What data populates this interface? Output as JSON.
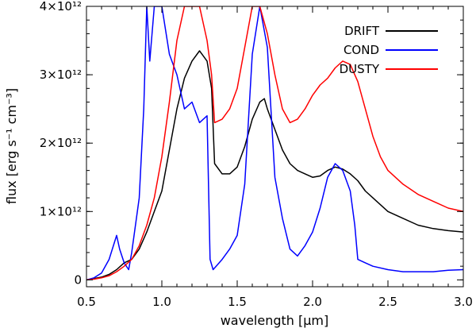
{
  "chart_data": {
    "type": "line",
    "xlabel": "wavelength [μm]",
    "ylabel": "flux [erg s⁻¹ cm⁻³]",
    "xlim": [
      0.5,
      3.0
    ],
    "ylim": [
      -100000000000.0,
      4000000000000.0
    ],
    "x_ticks": [
      0.5,
      1.0,
      1.5,
      2.0,
      2.5,
      3.0
    ],
    "x_tick_labels": [
      "0.5",
      "1.0",
      "1.5",
      "2.0",
      "2.5",
      "3.0"
    ],
    "y_ticks": [
      0,
      1000000000000.0,
      2000000000000.0,
      3000000000000.0,
      4000000000000.0
    ],
    "y_tick_labels": [
      "0",
      "1×10¹²",
      "2×10¹²",
      "3×10¹²",
      "4×10¹²"
    ],
    "grid": false,
    "legend_position": "top-right",
    "series": [
      {
        "name": "DRIFT",
        "color": "#000000",
        "x": [
          0.5,
          0.55,
          0.6,
          0.65,
          0.7,
          0.75,
          0.8,
          0.85,
          0.9,
          0.95,
          1.0,
          1.05,
          1.1,
          1.15,
          1.2,
          1.25,
          1.3,
          1.33,
          1.35,
          1.4,
          1.45,
          1.5,
          1.55,
          1.6,
          1.65,
          1.68,
          1.7,
          1.75,
          1.8,
          1.85,
          1.9,
          1.95,
          2.0,
          2.05,
          2.1,
          2.15,
          2.2,
          2.25,
          2.3,
          2.35,
          2.4,
          2.45,
          2.5,
          2.6,
          2.7,
          2.8,
          2.9,
          3.0
        ],
        "y": [
          0,
          20000000000.0,
          40000000000.0,
          80000000000.0,
          150000000000.0,
          250000000000.0,
          300000000000.0,
          450000000000.0,
          700000000000.0,
          1000000000000.0,
          1300000000000.0,
          1900000000000.0,
          2500000000000.0,
          2950000000000.0,
          3200000000000.0,
          3350000000000.0,
          3200000000000.0,
          2800000000000.0,
          1700000000000.0,
          1550000000000.0,
          1550000000000.0,
          1650000000000.0,
          1950000000000.0,
          2350000000000.0,
          2600000000000.0,
          2650000000000.0,
          2500000000000.0,
          2200000000000.0,
          1900000000000.0,
          1700000000000.0,
          1600000000000.0,
          1550000000000.0,
          1500000000000.0,
          1520000000000.0,
          1600000000000.0,
          1650000000000.0,
          1620000000000.0,
          1550000000000.0,
          1450000000000.0,
          1300000000000.0,
          1200000000000.0,
          1100000000000.0,
          1000000000000.0,
          900000000000.0,
          800000000000.0,
          750000000000.0,
          720000000000.0,
          700000000000.0
        ]
      },
      {
        "name": "COND",
        "color": "#0000ff",
        "x": [
          0.5,
          0.55,
          0.6,
          0.65,
          0.7,
          0.72,
          0.75,
          0.78,
          0.8,
          0.85,
          0.88,
          0.9,
          0.92,
          0.95,
          1.0,
          1.05,
          1.1,
          1.15,
          1.2,
          1.25,
          1.3,
          1.32,
          1.34,
          1.36,
          1.4,
          1.45,
          1.5,
          1.55,
          1.6,
          1.65,
          1.7,
          1.75,
          1.8,
          1.85,
          1.9,
          1.95,
          2.0,
          2.05,
          2.1,
          2.15,
          2.2,
          2.25,
          2.28,
          2.3,
          2.35,
          2.4,
          2.5,
          2.6,
          2.7,
          2.8,
          2.9,
          3.0
        ],
        "y": [
          0,
          30000000000.0,
          100000000000.0,
          300000000000.0,
          650000000000.0,
          450000000000.0,
          250000000000.0,
          150000000000.0,
          400000000000.0,
          1200000000000.0,
          2500000000000.0,
          4000000000000.0,
          3200000000000.0,
          4000000000000.0,
          4000000000000.0,
          3300000000000.0,
          3000000000000.0,
          2500000000000.0,
          2600000000000.0,
          2300000000000.0,
          2400000000000.0,
          300000000000.0,
          150000000000.0,
          200000000000.0,
          300000000000.0,
          450000000000.0,
          650000000000.0,
          1400000000000.0,
          3300000000000.0,
          4000000000000.0,
          3400000000000.0,
          1500000000000.0,
          900000000000.0,
          450000000000.0,
          350000000000.0,
          500000000000.0,
          700000000000.0,
          1050000000000.0,
          1500000000000.0,
          1700000000000.0,
          1600000000000.0,
          1300000000000.0,
          800000000000.0,
          300000000000.0,
          250000000000.0,
          200000000000.0,
          150000000000.0,
          120000000000.0,
          120000000000.0,
          120000000000.0,
          140000000000.0,
          150000000000.0
        ]
      },
      {
        "name": "DUSTY",
        "color": "#ff0000",
        "x": [
          0.5,
          0.55,
          0.6,
          0.65,
          0.7,
          0.75,
          0.8,
          0.85,
          0.9,
          0.95,
          1.0,
          1.05,
          1.1,
          1.15,
          1.2,
          1.25,
          1.3,
          1.33,
          1.35,
          1.4,
          1.45,
          1.5,
          1.55,
          1.6,
          1.65,
          1.7,
          1.75,
          1.8,
          1.85,
          1.9,
          1.95,
          2.0,
          2.05,
          2.1,
          2.15,
          2.2,
          2.25,
          2.3,
          2.35,
          2.4,
          2.45,
          2.5,
          2.6,
          2.7,
          2.8,
          2.9,
          3.0
        ],
        "y": [
          0,
          10000000000.0,
          30000000000.0,
          60000000000.0,
          120000000000.0,
          200000000000.0,
          300000000000.0,
          500000000000.0,
          800000000000.0,
          1200000000000.0,
          1800000000000.0,
          2600000000000.0,
          3500000000000.0,
          4000000000000.0,
          4000000000000.0,
          4000000000000.0,
          3500000000000.0,
          3000000000000.0,
          2300000000000.0,
          2350000000000.0,
          2500000000000.0,
          2800000000000.0,
          3400000000000.0,
          4000000000000.0,
          4000000000000.0,
          3600000000000.0,
          3000000000000.0,
          2500000000000.0,
          2300000000000.0,
          2350000000000.0,
          2500000000000.0,
          2700000000000.0,
          2850000000000.0,
          2950000000000.0,
          3100000000000.0,
          3200000000000.0,
          3150000000000.0,
          2900000000000.0,
          2500000000000.0,
          2100000000000.0,
          1800000000000.0,
          1600000000000.0,
          1400000000000.0,
          1250000000000.0,
          1150000000000.0,
          1050000000000.0,
          1000000000000.0
        ]
      }
    ]
  }
}
